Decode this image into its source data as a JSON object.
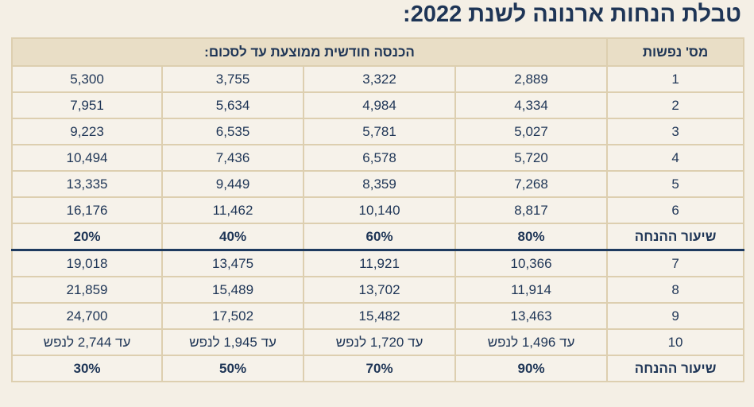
{
  "title": "טבלת הנחות ארנונה לשנת 2022:",
  "header": {
    "persons": "מס' נפשות",
    "income": "הכנסה חודשית ממוצעת עד לסכום:"
  },
  "rows_a": [
    {
      "n": "1",
      "v": [
        "2,889",
        "3,322",
        "3,755",
        "5,300"
      ]
    },
    {
      "n": "2",
      "v": [
        "4,334",
        "4,984",
        "5,634",
        "7,951"
      ]
    },
    {
      "n": "3",
      "v": [
        "5,027",
        "5,781",
        "6,535",
        "9,223"
      ]
    },
    {
      "n": "4",
      "v": [
        "5,720",
        "6,578",
        "7,436",
        "10,494"
      ]
    },
    {
      "n": "5",
      "v": [
        "7,268",
        "8,359",
        "9,449",
        "13,335"
      ]
    },
    {
      "n": "6",
      "v": [
        "8,817",
        "10,140",
        "11,462",
        "16,176"
      ]
    }
  ],
  "rate_a": {
    "label": "שיעור ההנחה",
    "v": [
      "80%",
      "60%",
      "40%",
      "20%"
    ]
  },
  "rows_b": [
    {
      "n": "7",
      "v": [
        "10,366",
        "11,921",
        "13,475",
        "19,018"
      ]
    },
    {
      "n": "8",
      "v": [
        "11,914",
        "13,702",
        "15,489",
        "21,859"
      ]
    },
    {
      "n": "9",
      "v": [
        "13,463",
        "15,482",
        "17,502",
        "24,700"
      ]
    },
    {
      "n": "10",
      "v": [
        "עד 1,496 לנפש",
        "עד 1,720 לנפש",
        "עד 1,945 לנפש",
        "עד 2,744 לנפש"
      ]
    }
  ],
  "rate_b": {
    "label": "שיעור ההנחה",
    "v": [
      "90%",
      "70%",
      "50%",
      "30%"
    ]
  }
}
